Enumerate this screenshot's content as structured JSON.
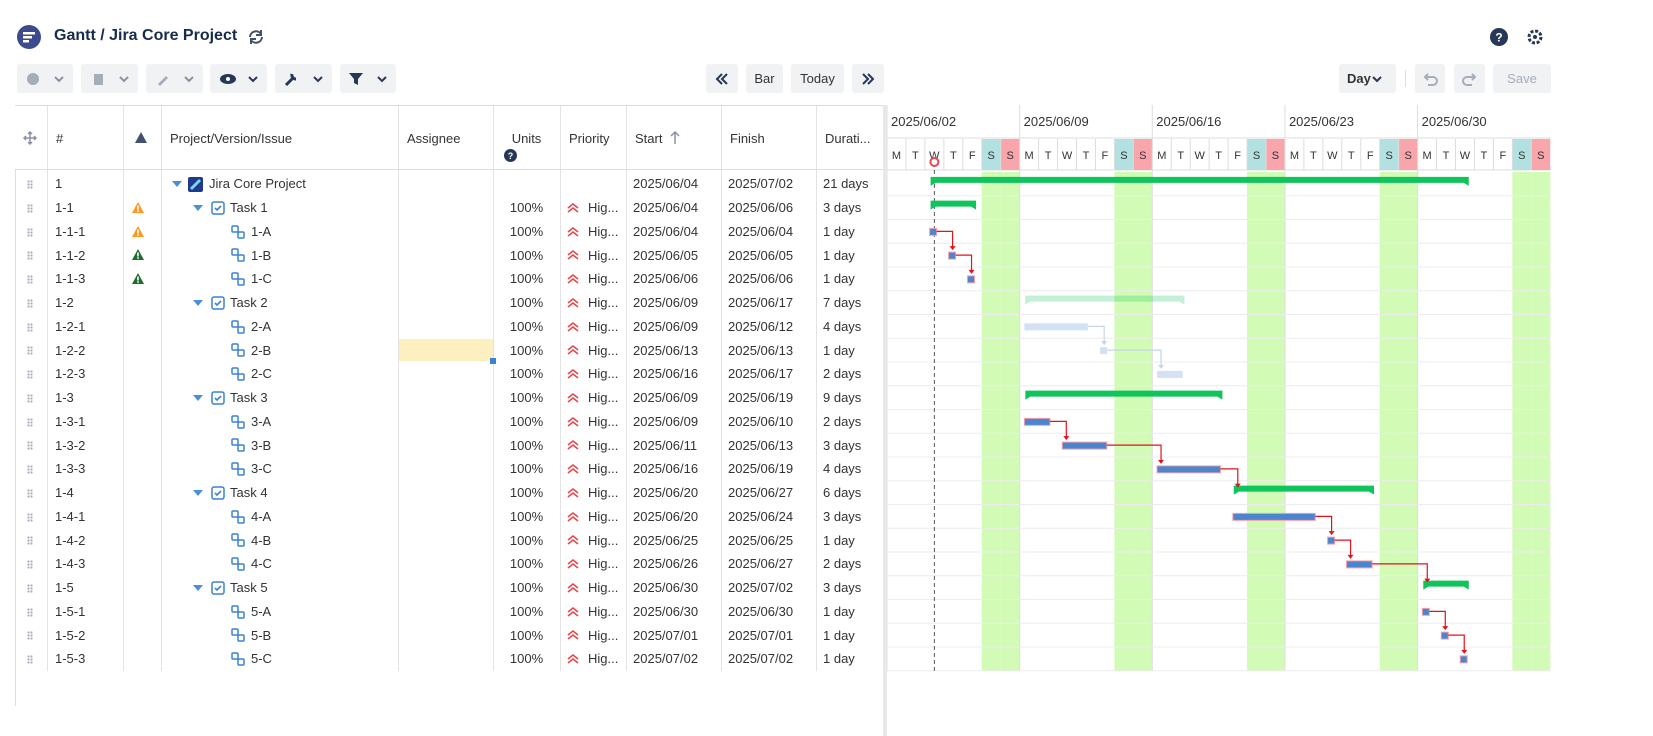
{
  "header": {
    "title": "Gantt / Jira Core Project"
  },
  "toolbar": {
    "bar": "Bar",
    "today": "Today",
    "scale": "Day",
    "save": "Save"
  },
  "table": {
    "columns": [
      "#",
      "Project/Version/Issue",
      "Assignee",
      "Units",
      "Priority",
      "Start",
      "Finish",
      "Durati..."
    ],
    "rows": [
      {
        "id": "1",
        "name": "Jira Core Project",
        "start": "2025/06/04",
        "finish": "2025/07/02",
        "duration": "21 days",
        "level": 0,
        "highlight": true
      },
      {
        "id": "1-1",
        "name": "Task 1",
        "units": "100%",
        "priority": "Hig...",
        "start": "2025/06/04",
        "finish": "2025/06/06",
        "duration": "3 days",
        "level": 1,
        "highlight": true,
        "alert": "warning"
      },
      {
        "id": "1-1-1",
        "name": "1-A",
        "units": "100%",
        "priority": "Hig...",
        "start": "2025/06/04",
        "finish": "2025/06/04",
        "duration": "1 day",
        "level": 2,
        "highlight": true,
        "alert": "warning"
      },
      {
        "id": "1-1-2",
        "name": "1-B",
        "units": "100%",
        "priority": "Hig...",
        "start": "2025/06/05",
        "finish": "2025/06/05",
        "duration": "1 day",
        "level": 2,
        "highlight": true,
        "alert": "error"
      },
      {
        "id": "1-1-3",
        "name": "1-C",
        "units": "100%",
        "priority": "Hig...",
        "start": "2025/06/06",
        "finish": "2025/06/06",
        "duration": "1 day",
        "level": 2,
        "highlight": true,
        "alert": "error"
      },
      {
        "id": "1-2",
        "name": "Task 2",
        "units": "100%",
        "priority": "Hig...",
        "start": "2025/06/09",
        "finish": "2025/06/17",
        "duration": "7 days",
        "level": 1,
        "highlight": false
      },
      {
        "id": "1-2-1",
        "name": "2-A",
        "units": "100%",
        "priority": "Hig...",
        "start": "2025/06/09",
        "finish": "2025/06/12",
        "duration": "4 days",
        "level": 2,
        "highlight": false
      },
      {
        "id": "1-2-2",
        "name": "2-B",
        "units": "100%",
        "priority": "Hig...",
        "start": "2025/06/13",
        "finish": "2025/06/13",
        "duration": "1 day",
        "level": 2,
        "highlight": false
      },
      {
        "id": "1-2-3",
        "name": "2-C",
        "units": "100%",
        "priority": "Hig...",
        "start": "2025/06/16",
        "finish": "2025/06/17",
        "duration": "2 days",
        "level": 2,
        "highlight": false
      },
      {
        "id": "1-3",
        "name": "Task 3",
        "units": "100%",
        "priority": "Hig...",
        "start": "2025/06/09",
        "finish": "2025/06/19",
        "duration": "9 days",
        "level": 1,
        "highlight": true
      },
      {
        "id": "1-3-1",
        "name": "3-A",
        "units": "100%",
        "priority": "Hig...",
        "start": "2025/06/09",
        "finish": "2025/06/10",
        "duration": "2 days",
        "level": 2,
        "highlight": true
      },
      {
        "id": "1-3-2",
        "name": "3-B",
        "units": "100%",
        "priority": "Hig...",
        "start": "2025/06/11",
        "finish": "2025/06/13",
        "duration": "3 days",
        "level": 2,
        "highlight": true
      },
      {
        "id": "1-3-3",
        "name": "3-C",
        "units": "100%",
        "priority": "Hig...",
        "start": "2025/06/16",
        "finish": "2025/06/19",
        "duration": "4 days",
        "level": 2,
        "highlight": true
      },
      {
        "id": "1-4",
        "name": "Task 4",
        "units": "100%",
        "priority": "Hig...",
        "start": "2025/06/20",
        "finish": "2025/06/27",
        "duration": "6 days",
        "level": 1,
        "highlight": true
      },
      {
        "id": "1-4-1",
        "name": "4-A",
        "units": "100%",
        "priority": "Hig...",
        "start": "2025/06/20",
        "finish": "2025/06/24",
        "duration": "3 days",
        "level": 2,
        "highlight": true
      },
      {
        "id": "1-4-2",
        "name": "4-B",
        "units": "100%",
        "priority": "Hig...",
        "start": "2025/06/25",
        "finish": "2025/06/25",
        "duration": "1 day",
        "level": 2,
        "highlight": true
      },
      {
        "id": "1-4-3",
        "name": "4-C",
        "units": "100%",
        "priority": "Hig...",
        "start": "2025/06/26",
        "finish": "2025/06/27",
        "duration": "2 days",
        "level": 2,
        "highlight": true
      },
      {
        "id": "1-5",
        "name": "Task 5",
        "units": "100%",
        "priority": "Hig...",
        "start": "2025/06/30",
        "finish": "2025/07/02",
        "duration": "3 days",
        "level": 1,
        "highlight": true
      },
      {
        "id": "1-5-1",
        "name": "5-A",
        "units": "100%",
        "priority": "Hig...",
        "start": "2025/06/30",
        "finish": "2025/06/30",
        "duration": "1 day",
        "level": 2,
        "highlight": true
      },
      {
        "id": "1-5-2",
        "name": "5-B",
        "units": "100%",
        "priority": "Hig...",
        "start": "2025/07/01",
        "finish": "2025/07/01",
        "duration": "1 day",
        "level": 2,
        "highlight": true
      },
      {
        "id": "1-5-3",
        "name": "5-C",
        "units": "100%",
        "priority": "Hig...",
        "start": "2025/07/02",
        "finish": "2025/07/02",
        "duration": "1 day",
        "level": 2,
        "highlight": true
      }
    ]
  },
  "gantt": {
    "weeks": [
      "2025/06/02",
      "2025/06/09",
      "2025/06/16",
      "2025/06/23",
      "2025/06/30"
    ],
    "days": [
      "M",
      "T",
      "W",
      "T",
      "F",
      "S",
      "S"
    ]
  }
}
